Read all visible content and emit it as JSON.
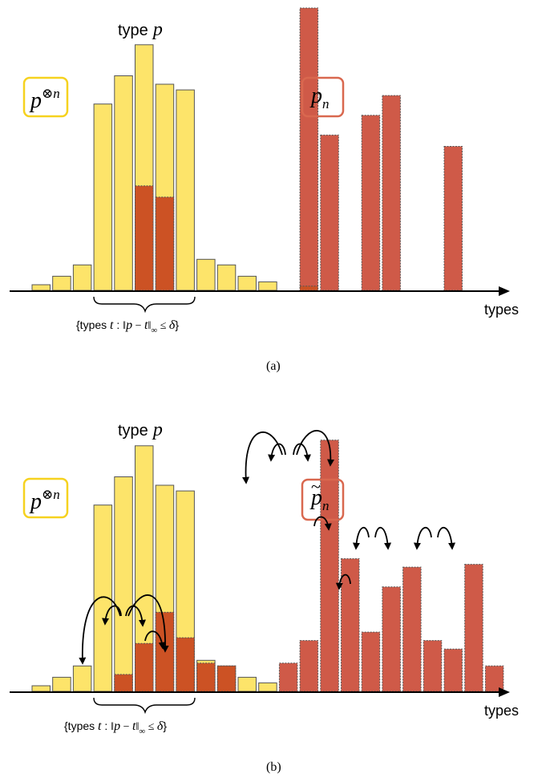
{
  "colors": {
    "yellow_fill": "#fde46a",
    "yellow_box": "#f6d21f",
    "red_fill": "#cf5a48",
    "red_overlap": "#cc5224",
    "red_box": "#d9684f",
    "axis": "#000000",
    "bar_stroke": "#555555"
  },
  "panel_a": {
    "caption": "(a)",
    "type_label": "type",
    "type_symbol": "p",
    "x_axis_label": "types",
    "yellow_box_base": "p",
    "yellow_box_sup": "⊗n",
    "red_box_base": "p",
    "red_box_sub": "n",
    "brace_text": "{types t :  ‖p − t‖∞ ≤ δ}",
    "yellow_heights": [
      0.02,
      0.05,
      0.09,
      0.66,
      0.76,
      0.87,
      0.73,
      0.71,
      0.11,
      0.09,
      0.05,
      0.03
    ],
    "overlap_heights": {
      "5": 0.37,
      "6": 0.33,
      "13": 0.015
    },
    "red_bars": [
      {
        "slot": 13,
        "height": 1.0
      },
      {
        "slot": 14,
        "height": 0.55
      },
      {
        "slot": 16,
        "height": 0.62
      },
      {
        "slot": 17,
        "height": 0.69
      },
      {
        "slot": 20,
        "height": 0.51
      }
    ]
  },
  "panel_b": {
    "caption": "(b)",
    "type_label": "type",
    "type_symbol": "p",
    "x_axis_label": "types",
    "yellow_box_base": "p",
    "yellow_box_sup": "⊗n",
    "red_box_base": "p",
    "red_box_sub": "n",
    "red_box_tilde": "~",
    "brace_text": "{types t :  ‖p − t‖∞ ≤ δ}",
    "yellow_heights": [
      0.02,
      0.05,
      0.09,
      0.66,
      0.76,
      0.87,
      0.73,
      0.71,
      0.11,
      0.09,
      0.05,
      0.03
    ],
    "red_bars": [
      {
        "slot": 4,
        "height": 0.06
      },
      {
        "slot": 5,
        "height": 0.17
      },
      {
        "slot": 6,
        "height": 0.28
      },
      {
        "slot": 7,
        "height": 0.19
      },
      {
        "slot": 8,
        "height": 0.1
      },
      {
        "slot": 9,
        "height": 0.09
      },
      {
        "slot": 12,
        "height": 0.1
      },
      {
        "slot": 13,
        "height": 0.18
      },
      {
        "slot": 14,
        "height": 0.89
      },
      {
        "slot": 15,
        "height": 0.47
      },
      {
        "slot": 16,
        "height": 0.21
      },
      {
        "slot": 17,
        "height": 0.37
      },
      {
        "slot": 18,
        "height": 0.44
      },
      {
        "slot": 19,
        "height": 0.18
      },
      {
        "slot": 20,
        "height": 0.15
      },
      {
        "slot": 21,
        "height": 0.45
      },
      {
        "slot": 22,
        "height": 0.09
      }
    ]
  }
}
